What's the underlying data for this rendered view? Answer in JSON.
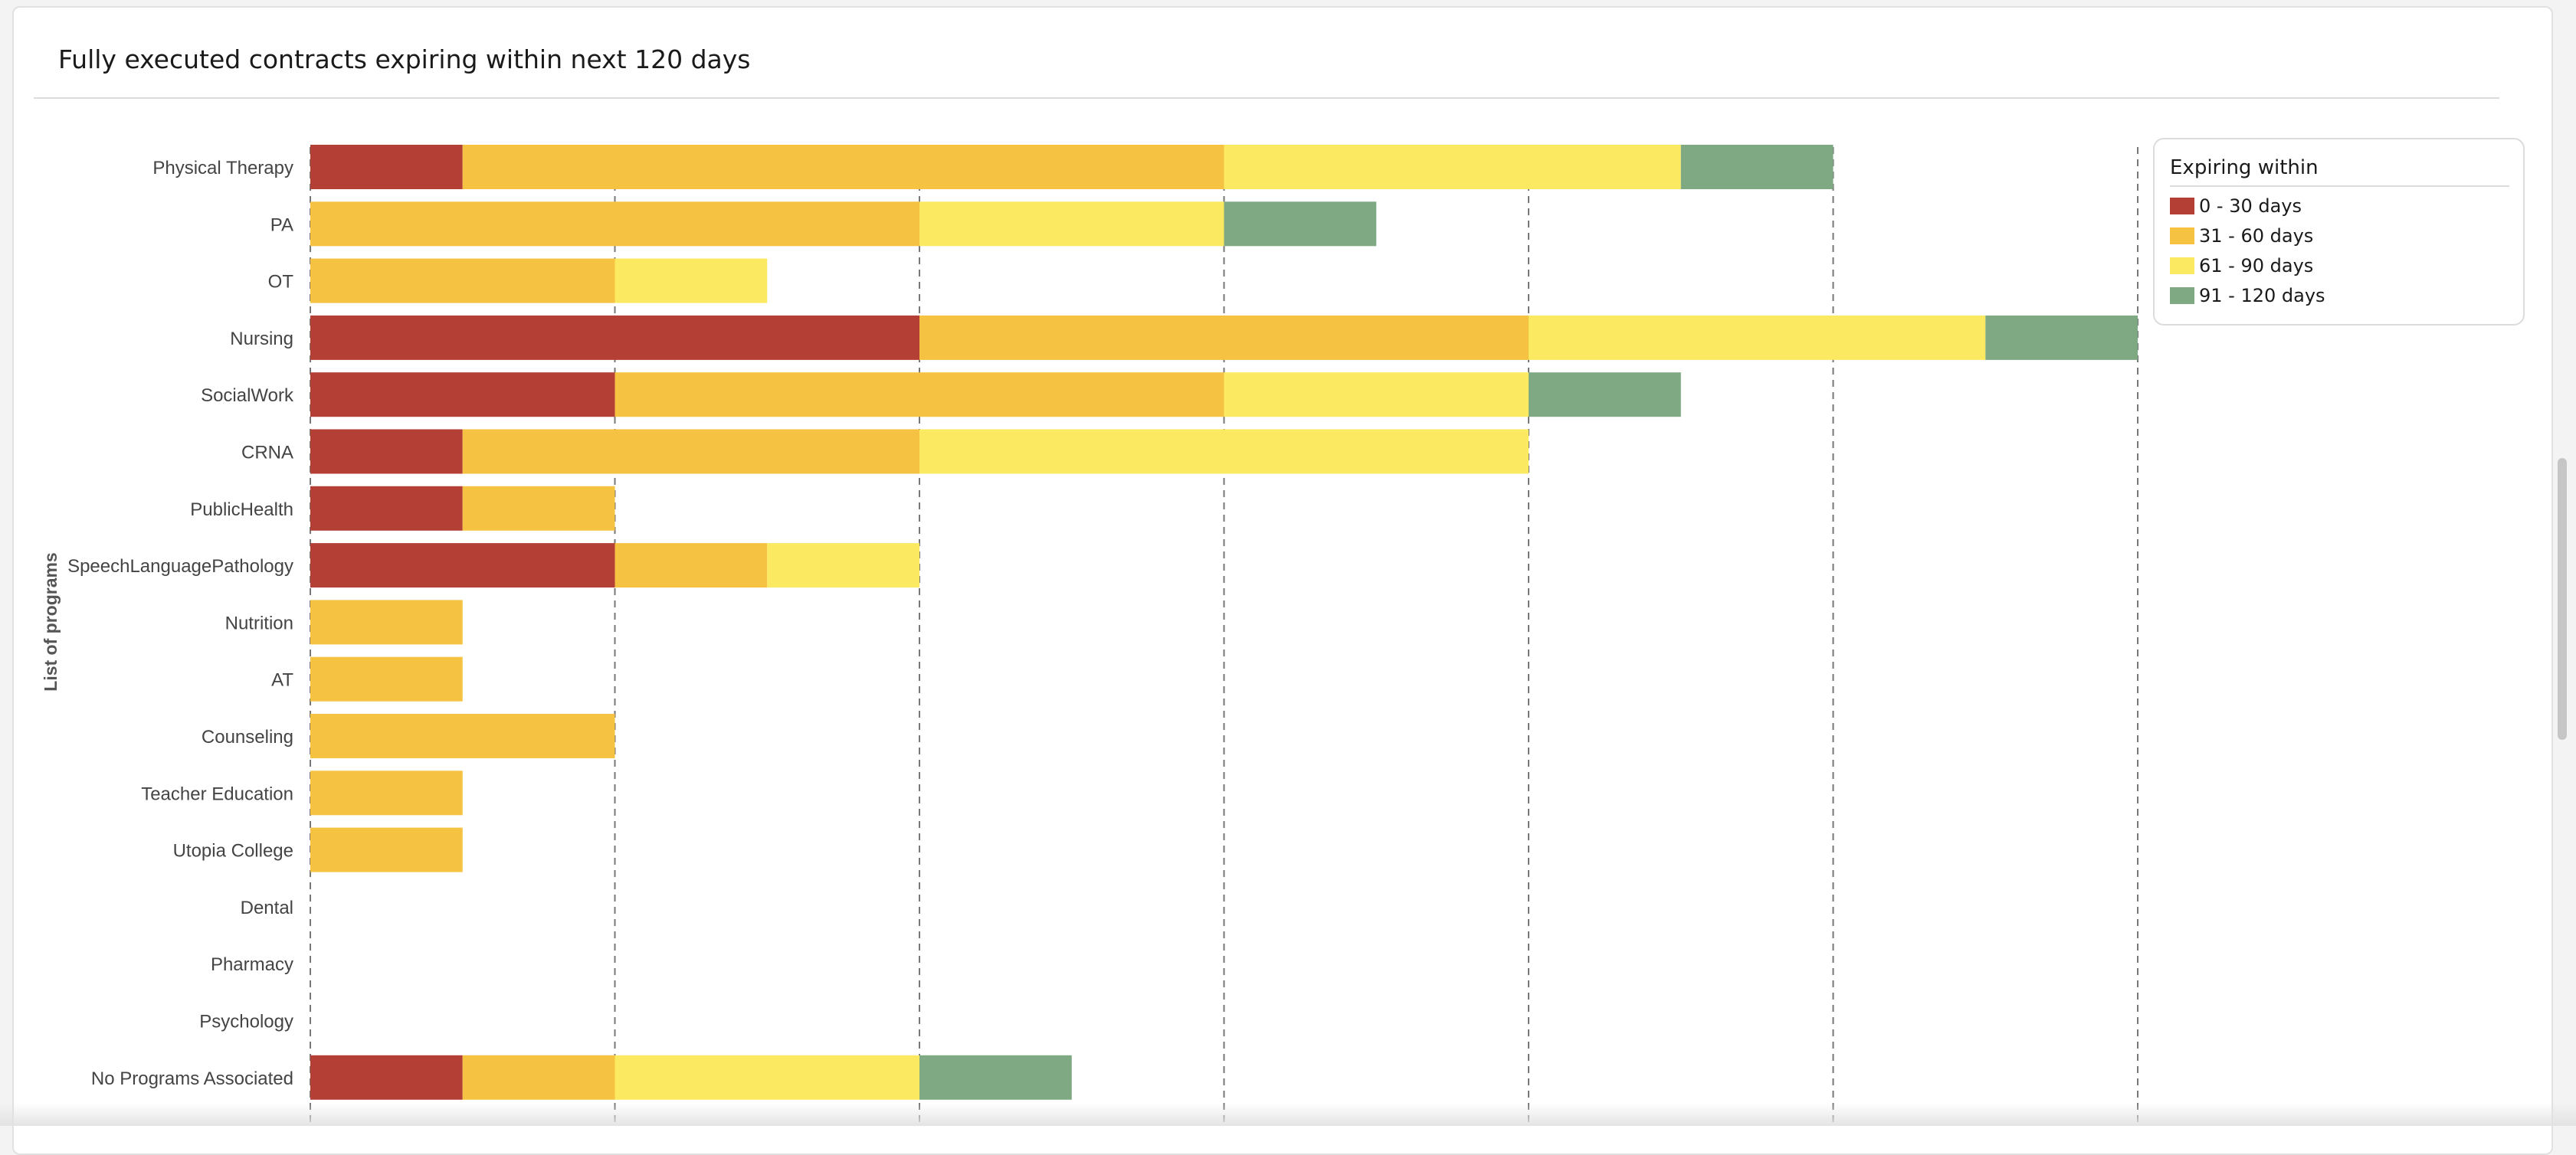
{
  "card": {
    "title": "Fully executed contracts expiring within next 120 days"
  },
  "legend": {
    "title": "Expiring within",
    "items": [
      {
        "label": "0 - 30 days",
        "color": "#b43f34"
      },
      {
        "label": "31 - 60 days",
        "color": "#f6c242"
      },
      {
        "label": "61 - 90 days",
        "color": "#fce962"
      },
      {
        "label": "91 - 120 days",
        "color": "#7fa983"
      }
    ]
  },
  "chart_data": {
    "type": "bar",
    "orientation": "horizontal",
    "stacked": true,
    "ylabel": "List of programs",
    "xlabel": "",
    "xlim": [
      0,
      12
    ],
    "grid": "vertical dashed",
    "legend_position": "top-right",
    "categories": [
      "Physical Therapy",
      "PA",
      "OT",
      "Nursing",
      "SocialWork",
      "CRNA",
      "PublicHealth",
      "SpeechLanguagePathology",
      "Nutrition",
      "AT",
      "Counseling",
      "Teacher Education",
      "Utopia College",
      "Dental",
      "Pharmacy",
      "Psychology",
      "No Programs Associated"
    ],
    "series": [
      {
        "name": "0 - 30 days",
        "color": "#b43f34",
        "values": [
          1,
          0,
          0,
          4,
          2,
          1,
          1,
          2,
          0,
          0,
          0,
          0,
          0,
          0,
          0,
          0,
          1
        ]
      },
      {
        "name": "31 - 60 days",
        "color": "#f6c242",
        "values": [
          5,
          4,
          2,
          4,
          4,
          3,
          1,
          1,
          1,
          1,
          2,
          1,
          1,
          0,
          0,
          0,
          1
        ]
      },
      {
        "name": "61 - 90 days",
        "color": "#fce962",
        "values": [
          3,
          2,
          1,
          3,
          2,
          4,
          0,
          1,
          0,
          0,
          0,
          0,
          0,
          0,
          0,
          0,
          2
        ]
      },
      {
        "name": "91 - 120 days",
        "color": "#7fa983",
        "values": [
          1,
          1,
          0,
          1,
          1,
          0,
          0,
          0,
          0,
          0,
          0,
          0,
          0,
          0,
          0,
          0,
          1
        ]
      }
    ]
  }
}
